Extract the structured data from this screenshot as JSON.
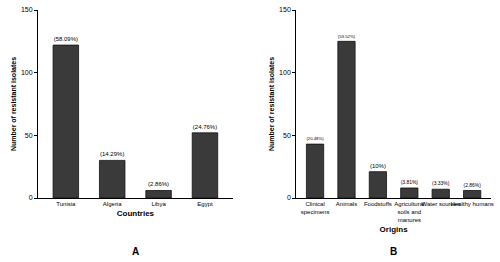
{
  "chart_data": [
    {
      "type": "bar",
      "panel_label": "A",
      "x_label": "Countries",
      "y_label": "Number of resistant isolates",
      "categories": [
        "Tunisia",
        "Algeria",
        "Libya",
        "Egypt"
      ],
      "values": [
        122,
        30,
        6,
        52
      ],
      "annotations": [
        "(58.09%)",
        "(14.29%)",
        "(2.86%)",
        "(24.76%)"
      ],
      "color": "#3a3a3a",
      "ylim": [
        0,
        150
      ],
      "yticks": [
        0,
        50,
        100,
        150
      ],
      "grid": false
    },
    {
      "type": "bar",
      "panel_label": "B",
      "x_label": "Origins",
      "y_label": "Number of resistant isolates",
      "categories": [
        "Clinical specimens",
        "Animals",
        "Foodstuffs",
        "Agricultural soils and manures",
        "Water sources",
        "Healthy humans"
      ],
      "values": [
        43,
        125,
        21,
        8,
        7,
        6
      ],
      "annotations": [
        "(20.48%)",
        "(59.52%)",
        "(10%)",
        "(3.81%)",
        "(3.33%)",
        "(2.86%)"
      ],
      "color": "#3a3a3a",
      "ylim": [
        0,
        150
      ],
      "yticks": [
        0,
        50,
        100,
        150
      ],
      "grid": false
    }
  ]
}
